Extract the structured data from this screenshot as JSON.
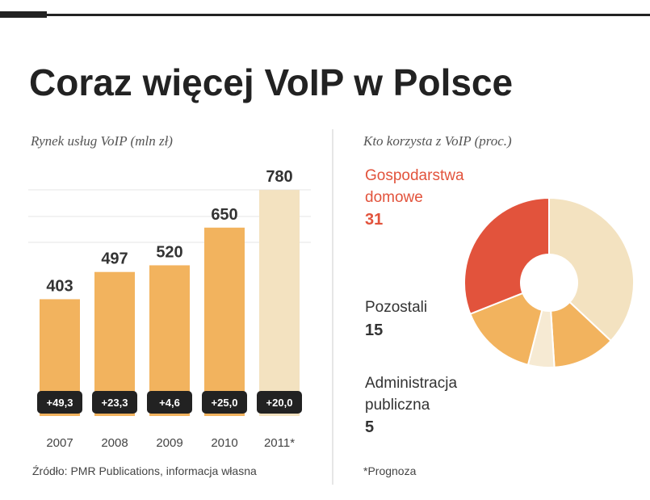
{
  "chart_data": [
    {
      "type": "bar",
      "title": "Coraz więcej VoIP w Polsce",
      "subtitle": "Rynek usług VoIP (mln zł)",
      "categories": [
        "2007",
        "2008",
        "2009",
        "2010",
        "2011*"
      ],
      "values": [
        403,
        497,
        520,
        650,
        780
      ],
      "change_labels": [
        "+49,3",
        "+23,3",
        "+4,6",
        "+25,0",
        "+20,0"
      ],
      "colors": [
        "#f2b35e",
        "#f2b35e",
        "#f2b35e",
        "#f2b35e",
        "#f3e2c0"
      ],
      "ylim": [
        0,
        800
      ],
      "source": "Źródło: PMR Publications, informacja własna"
    },
    {
      "type": "donut",
      "subtitle": "Kto korzysta z VoIP (proc.)",
      "categories": [
        null,
        null,
        "Administracja publiczna",
        "Pozostali",
        "Gospodarstwa domowe"
      ],
      "values": [
        37,
        12,
        5,
        15,
        31
      ],
      "colors": [
        "#f3e2c0",
        "#f2b35e",
        "#f6ead3",
        "#f2b35e",
        "#e2533c"
      ],
      "note": "*Prognoza"
    }
  ]
}
